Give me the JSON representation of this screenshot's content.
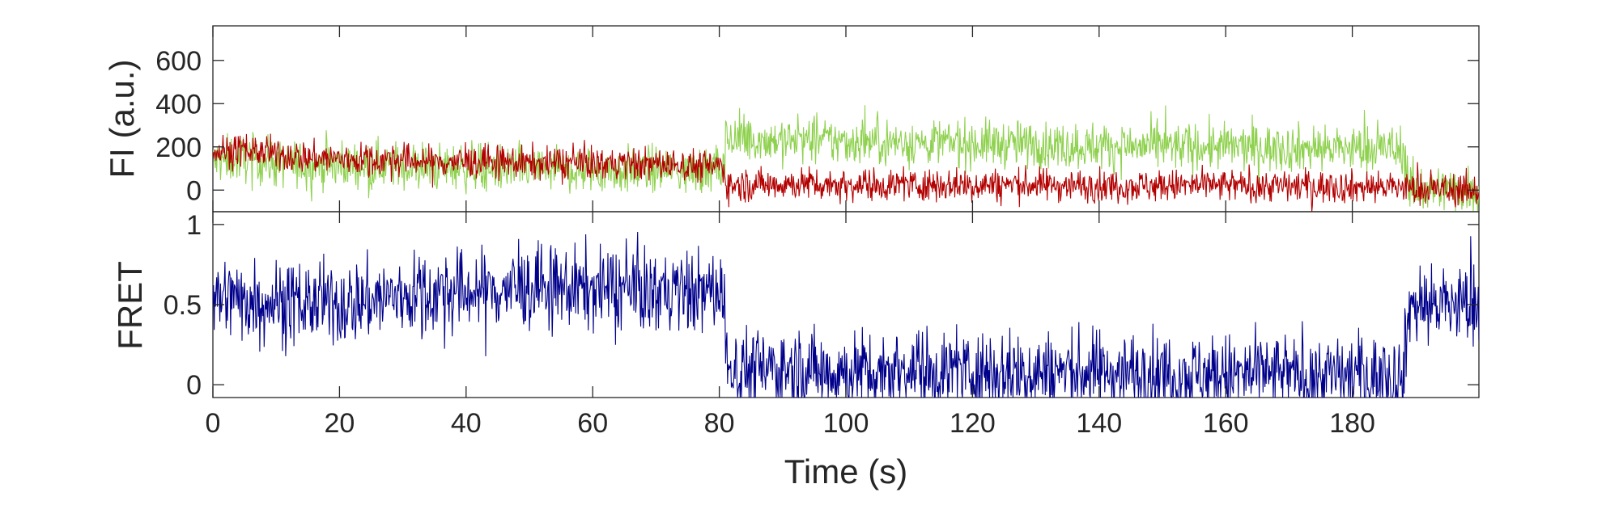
{
  "chart_data": [
    {
      "type": "line",
      "panel": "top",
      "title": "",
      "ylabel": "FI (a.u.)",
      "xlabel": "",
      "xlim": [
        0,
        200
      ],
      "ylim": [
        -100,
        760
      ],
      "yticks": [
        0,
        200,
        400,
        600
      ],
      "xticks": [
        0,
        20,
        40,
        60,
        80,
        100,
        120,
        140,
        160,
        180
      ],
      "grid": false,
      "legend": "none",
      "series": [
        {
          "color": "#8fd14f",
          "x": [
            0,
            5,
            10,
            15,
            20,
            25,
            30,
            35,
            40,
            45,
            50,
            55,
            60,
            65,
            70,
            75,
            80.9,
            81,
            85,
            90,
            95,
            100,
            105,
            110,
            115,
            120,
            125,
            130,
            135,
            140,
            145,
            150,
            155,
            160,
            165,
            170,
            175,
            180,
            185,
            188,
            189,
            195,
            200
          ],
          "y": [
            130,
            150,
            120,
            120,
            115,
            120,
            110,
            105,
            105,
            100,
            95,
            90,
            90,
            90,
            95,
            90,
            95,
            240,
            235,
            230,
            230,
            225,
            225,
            220,
            220,
            215,
            215,
            210,
            205,
            205,
            200,
            200,
            200,
            200,
            195,
            195,
            195,
            190,
            190,
            190,
            10,
            5,
            0
          ],
          "noise": 55
        },
        {
          "color": "#b30000",
          "x": [
            0,
            5,
            10,
            15,
            20,
            25,
            30,
            35,
            40,
            45,
            50,
            55,
            60,
            65,
            70,
            75,
            80.9,
            81,
            85,
            90,
            95,
            100,
            110,
            120,
            130,
            140,
            150,
            160,
            170,
            180,
            188,
            189,
            195,
            200
          ],
          "y": [
            175,
            190,
            165,
            150,
            145,
            140,
            140,
            130,
            130,
            130,
            125,
            125,
            125,
            120,
            120,
            115,
            110,
            20,
            25,
            30,
            30,
            25,
            25,
            25,
            25,
            20,
            20,
            20,
            20,
            15,
            15,
            5,
            0,
            0
          ],
          "noise": 38
        }
      ]
    },
    {
      "type": "line",
      "panel": "bottom",
      "title": "",
      "ylabel": "FRET",
      "xlabel": "Time (s)",
      "xlim": [
        0,
        200
      ],
      "ylim": [
        -0.08,
        1.08
      ],
      "yticks": [
        0,
        0.5,
        1
      ],
      "ytick_labels": [
        "0",
        "0.5",
        "1"
      ],
      "xticks": [
        0,
        20,
        40,
        60,
        80,
        100,
        120,
        140,
        160,
        180
      ],
      "xtick_labels": [
        "0",
        "20",
        "40",
        "60",
        "80",
        "100",
        "120",
        "140",
        "160",
        "180"
      ],
      "grid": false,
      "legend": "none",
      "series": [
        {
          "color": "#00008b",
          "x": [
            0,
            10,
            20,
            30,
            40,
            50,
            60,
            70,
            80.9,
            81,
            90,
            100,
            110,
            120,
            130,
            140,
            150,
            160,
            170,
            180,
            188,
            189,
            195,
            200
          ],
          "y": [
            0.55,
            0.52,
            0.5,
            0.56,
            0.58,
            0.6,
            0.6,
            0.58,
            0.58,
            0.1,
            0.1,
            0.08,
            0.1,
            0.08,
            0.08,
            0.08,
            0.07,
            0.06,
            0.06,
            0.06,
            0.05,
            0.5,
            0.5,
            0.5
          ],
          "noise": 0.13
        }
      ]
    }
  ]
}
